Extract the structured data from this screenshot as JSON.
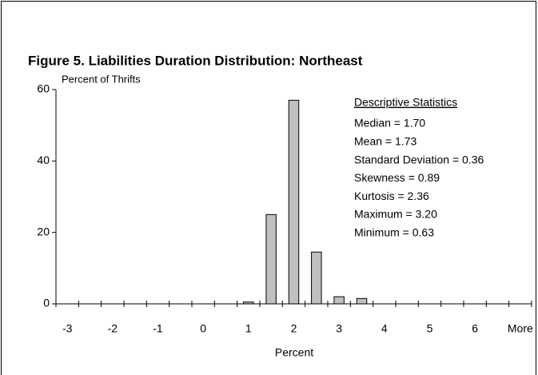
{
  "chart_data": {
    "type": "bar",
    "title": "Figure 5.  Liabilities Duration Distribution: Northeast",
    "y_label": "Percent of Thrifts",
    "x_label": "Percent",
    "categories": [
      "-3",
      null,
      "-2",
      null,
      "-1",
      null,
      "0",
      null,
      "1",
      null,
      "2",
      null,
      "3",
      null,
      "4",
      null,
      "5",
      null,
      "6",
      null,
      "More"
    ],
    "values": [
      0,
      0,
      0,
      0,
      0,
      0,
      0,
      0,
      0.5,
      25,
      57,
      14.5,
      2,
      1.5,
      0,
      0,
      0,
      0,
      0,
      0,
      0
    ],
    "color": "#c0c0c0",
    "ylim": [
      0,
      60
    ],
    "yticks": [
      0,
      20,
      40,
      60
    ],
    "grid": false,
    "stats_title": "Descriptive Statistics",
    "stats": [
      "Median  = 1.70",
      "Mean = 1.73",
      "Standard Deviation = 0.36",
      "Skewness = 0.89",
      "Kurtosis = 2.36",
      "Maximum = 3.20",
      "Minimum = 0.63"
    ]
  }
}
